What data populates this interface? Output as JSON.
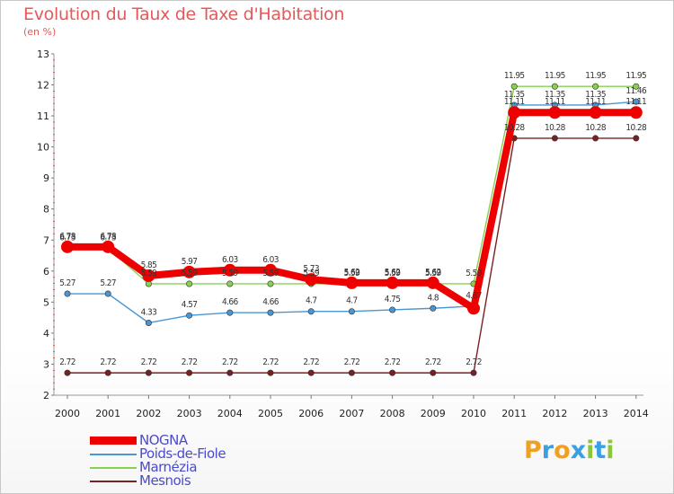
{
  "title": "Evolution du Taux de Taxe d'Habitation",
  "unit_label": "(en %)",
  "brand": {
    "text": "Proxiti",
    "letters": [
      {
        "ch": "P",
        "color": "#f0a020"
      },
      {
        "ch": "r",
        "color": "#3aa0e0"
      },
      {
        "ch": "o",
        "color": "#f0a020"
      },
      {
        "ch": "x",
        "color": "#3aa0e0"
      },
      {
        "ch": "i",
        "color": "#8cc63f"
      },
      {
        "ch": "t",
        "color": "#3aa0e0"
      },
      {
        "ch": "i",
        "color": "#8cc63f"
      }
    ]
  },
  "chart_data": {
    "type": "line",
    "x": [
      "2000",
      "2001",
      "2002",
      "2003",
      "2004",
      "2005",
      "2006",
      "2007",
      "2008",
      "2009",
      "2010",
      "2011",
      "2012",
      "2013",
      "2014"
    ],
    "ylim": [
      2,
      13
    ],
    "yticks": [
      2,
      3,
      4,
      5,
      6,
      7,
      8,
      9,
      10,
      11,
      12,
      13
    ],
    "grid": false,
    "legend_position": "bottom-left",
    "series": [
      {
        "name": "NOGNA",
        "color": "#ee0000",
        "values": [
          6.78,
          6.78,
          5.85,
          5.97,
          6.03,
          6.03,
          5.73,
          5.62,
          5.62,
          5.62,
          4.8,
          11.11,
          11.11,
          11.11,
          11.11
        ],
        "labels": [
          "6.78",
          "6.78",
          "5.85",
          "5.97",
          "6.03",
          "6.03",
          "5.73",
          "5.62",
          "5.62",
          "5.62",
          "",
          "11.11",
          "11.11",
          "11.11",
          "11.11"
        ]
      },
      {
        "name": "Poids-de-Fiole",
        "color": "#4b96d2",
        "values": [
          5.27,
          5.27,
          4.33,
          4.57,
          4.66,
          4.66,
          4.7,
          4.7,
          4.75,
          4.8,
          4.87,
          11.35,
          11.35,
          11.35,
          11.46
        ],
        "labels": [
          "5.27",
          "5.27",
          "4.33",
          "4.57",
          "4.66",
          "4.66",
          "4.7",
          "4.7",
          "4.75",
          "4.8",
          "4.87",
          "11.35",
          "11.35",
          "11.35",
          "11.46"
        ]
      },
      {
        "name": "Marnézia",
        "color": "#88d050",
        "values": [
          6.73,
          6.73,
          5.59,
          5.59,
          5.59,
          5.59,
          5.59,
          5.59,
          5.59,
          5.59,
          5.59,
          11.95,
          11.95,
          11.95,
          11.95
        ],
        "labels": [
          "6.73",
          "6.73",
          "5.59",
          "5.59",
          "5.59",
          "5.59",
          "5.59",
          "5.59",
          "5.59",
          "5.59",
          "5.59",
          "11.95",
          "11.95",
          "11.95",
          "11.95"
        ]
      },
      {
        "name": "Mesnois",
        "color": "#7a2020",
        "values": [
          2.72,
          2.72,
          2.72,
          2.72,
          2.72,
          2.72,
          2.72,
          2.72,
          2.72,
          2.72,
          2.72,
          10.28,
          10.28,
          10.28,
          10.28
        ],
        "labels": [
          "2.72",
          "2.72",
          "2.72",
          "2.72",
          "2.72",
          "2.72",
          "2.72",
          "2.72",
          "2.72",
          "2.72",
          "2.72",
          "10.28",
          "10.28",
          "10.28",
          "10.28"
        ]
      }
    ]
  }
}
